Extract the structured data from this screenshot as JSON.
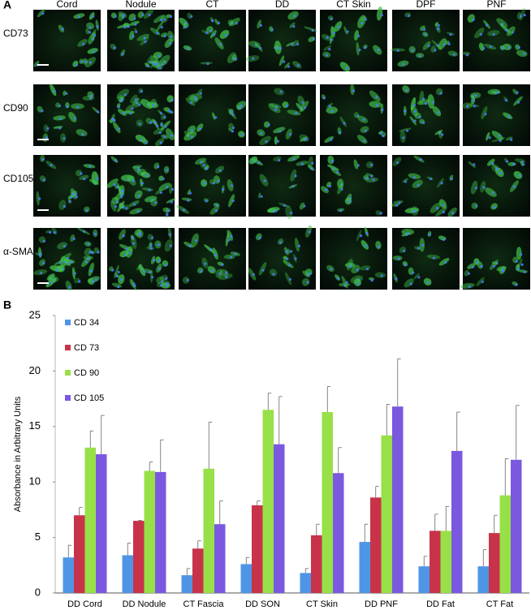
{
  "panel_a": {
    "label": "A",
    "columns": [
      "Cord",
      "Nodule",
      "CT",
      "DD",
      "CT Skin",
      "DPF",
      "PNF"
    ],
    "rows": [
      "CD73",
      "CD90",
      "CD105",
      "α-SMA"
    ]
  },
  "panel_b": {
    "label": "B"
  },
  "chart_data": {
    "type": "bar",
    "ylabel": "Absorbance in Arbitrary Units",
    "categories": [
      "DD Cord",
      "DD Nodule",
      "CT Fascia",
      "DD SON",
      "CT Skin",
      "DD PNF",
      "DD Fat",
      "CT Fat"
    ],
    "series": [
      {
        "name": "CD 34",
        "color": "#4f95e6",
        "values": [
          3.2,
          3.4,
          1.6,
          2.6,
          1.8,
          4.6,
          2.4,
          2.4
        ],
        "errors": [
          1.1,
          1.1,
          0.6,
          0.6,
          0.4,
          1.6,
          0.9,
          1.5
        ]
      },
      {
        "name": "CD 73",
        "color": "#c8334a",
        "values": [
          7.0,
          6.5,
          4.0,
          7.9,
          5.2,
          8.6,
          5.6,
          5.4
        ],
        "errors": [
          0.7,
          0.05,
          0.7,
          0.4,
          1.0,
          1.0,
          1.5,
          1.6
        ]
      },
      {
        "name": "CD 90",
        "color": "#98e048",
        "values": [
          13.1,
          11.0,
          11.2,
          16.5,
          16.3,
          14.2,
          5.6,
          8.8
        ],
        "errors": [
          1.5,
          0.8,
          4.2,
          1.5,
          2.3,
          2.8,
          2.2,
          3.3
        ]
      },
      {
        "name": "CD 105",
        "color": "#7b58e0",
        "values": [
          12.5,
          10.9,
          6.2,
          13.4,
          10.8,
          16.8,
          12.8,
          12.0
        ],
        "errors": [
          3.5,
          2.9,
          2.1,
          4.3,
          2.3,
          4.3,
          3.5,
          4.9
        ]
      }
    ],
    "ylim": [
      0,
      25
    ],
    "yticks": [
      0,
      5,
      10,
      15,
      20,
      25
    ],
    "grid": false,
    "legend": "upper left"
  }
}
